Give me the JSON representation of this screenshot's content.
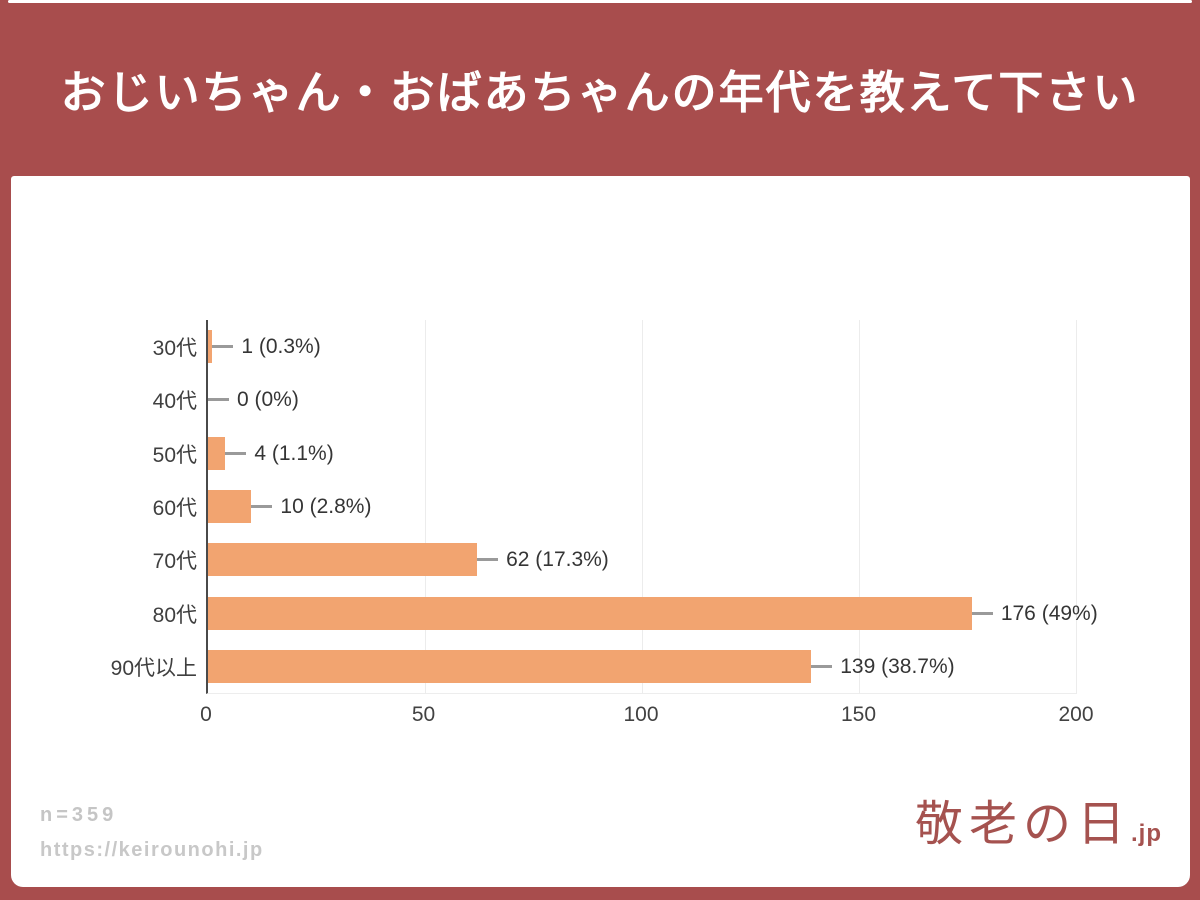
{
  "header": {
    "title": "おじいちゃん・おばあちゃんの年代を教えて下さい"
  },
  "chart_data": {
    "type": "bar",
    "orientation": "horizontal",
    "title": "おじいちゃん・おばあちゃんの年代を教えて下さい",
    "categories": [
      "30代",
      "40代",
      "50代",
      "60代",
      "70代",
      "80代",
      "90代以上"
    ],
    "values": [
      1,
      0,
      4,
      10,
      62,
      176,
      139
    ],
    "value_labels": [
      "1 (0.3%)",
      "0 (0%)",
      "4 (1.1%)",
      "10 (2.8%)",
      "62 (17.3%)",
      "176 (49%)",
      "139 (38.7%)"
    ],
    "xlim": [
      0,
      200
    ],
    "xticks": [
      0,
      50,
      100,
      150,
      200
    ],
    "grid": "vertical-gridlines-on",
    "legend": "none",
    "bar_color": "#F2A470",
    "total_responses": 359
  },
  "footer": {
    "sample_size": "n=359",
    "url": "https://keirounohi.jp",
    "logo_text": "敬老の日",
    "logo_suffix": ".jp"
  },
  "colors": {
    "background": "#A84D4D",
    "panel": "#FFFFFF",
    "bar": "#F2A470",
    "title_text": "#FFFFFF",
    "axis_line": "#4A4A4A",
    "axis_text": "#424242",
    "gridline": "#ECECEC",
    "leader_line": "#9A9A9A",
    "footer_text": "#C6C6C6",
    "logo": "#A5524F"
  }
}
